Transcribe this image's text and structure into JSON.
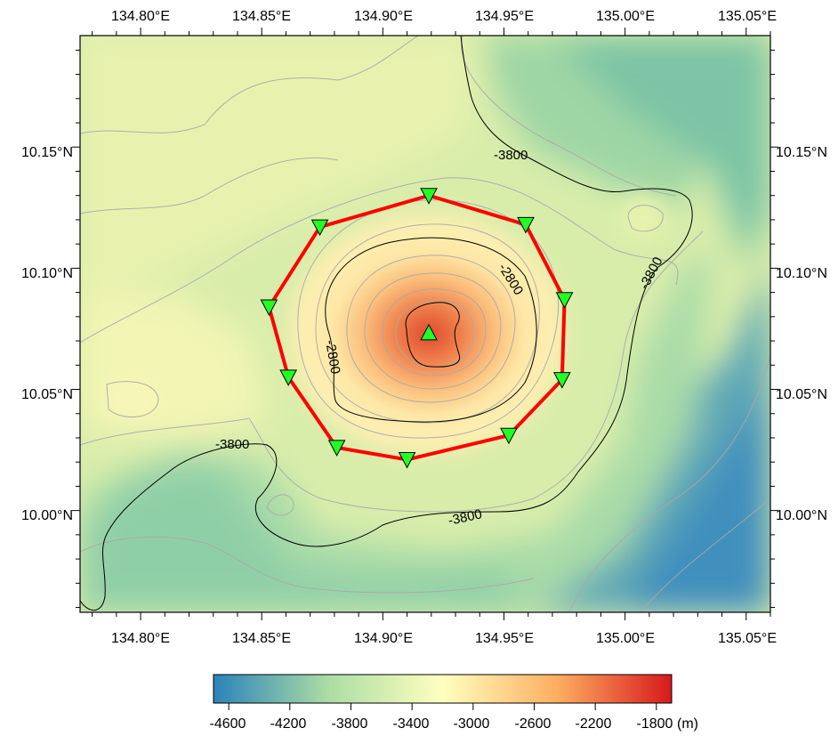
{
  "map": {
    "lon_ticks": [
      "134.80°E",
      "134.85°E",
      "134.90°E",
      "134.95°E",
      "135.00°E",
      "135.05°E"
    ],
    "lat_ticks": [
      "10.15°N",
      "10.10°N",
      "10.05°N",
      "10.00°N"
    ],
    "lon_range": [
      134.775,
      135.06
    ],
    "lat_range": [
      9.958,
      10.196
    ],
    "contour_labels": [
      "-3800",
      "-2800",
      "-2800",
      "-3800",
      "-3800",
      "-3800"
    ],
    "colors": {
      "deep": "#2b83ba",
      "mid": "#ffffbf",
      "shallow": "#d7191c",
      "array_line": "#ff0000",
      "station_fill": "#22ff22",
      "contour_major": "#000000",
      "contour_minor": "#a9a9a9"
    },
    "stations": [
      {
        "lon": 134.919,
        "lat": 10.13,
        "symbol": "inverted-triangle"
      },
      {
        "lon": 134.959,
        "lat": 10.118,
        "symbol": "inverted-triangle"
      },
      {
        "lon": 134.975,
        "lat": 10.087,
        "symbol": "inverted-triangle"
      },
      {
        "lon": 134.974,
        "lat": 10.054,
        "symbol": "inverted-triangle"
      },
      {
        "lon": 134.952,
        "lat": 10.031,
        "symbol": "inverted-triangle"
      },
      {
        "lon": 134.91,
        "lat": 10.021,
        "symbol": "inverted-triangle"
      },
      {
        "lon": 134.881,
        "lat": 10.026,
        "symbol": "inverted-triangle"
      },
      {
        "lon": 134.861,
        "lat": 10.055,
        "symbol": "inverted-triangle"
      },
      {
        "lon": 134.853,
        "lat": 10.084,
        "symbol": "inverted-triangle"
      },
      {
        "lon": 134.874,
        "lat": 10.117,
        "symbol": "inverted-triangle"
      }
    ],
    "center_station": {
      "lon": 134.919,
      "lat": 10.073,
      "symbol": "triangle"
    }
  },
  "colorbar": {
    "ticks": [
      "-4600",
      "-4200",
      "-3800",
      "-3400",
      "-3000",
      "-2600",
      "-2200",
      "-1800"
    ],
    "unit": "(m)",
    "range": [
      -4700,
      -1700
    ]
  }
}
